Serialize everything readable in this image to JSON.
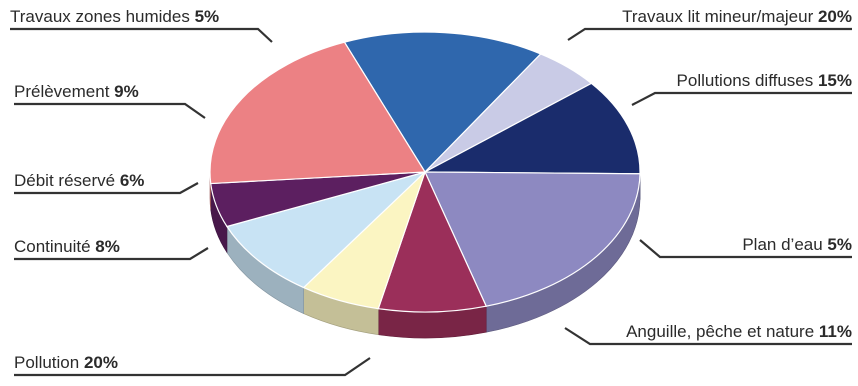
{
  "chart_data": {
    "type": "pie",
    "title": "",
    "legend": "none",
    "slices": [
      {
        "label": "Pollutions diffuses",
        "value": 15,
        "color": "#2f67ad"
      },
      {
        "label": "Plan d’eau",
        "value": 5,
        "color": "#c9cbe6"
      },
      {
        "label": "Anguille, pêche et nature",
        "value": 11,
        "color": "#1a2c6c"
      },
      {
        "label": "Pollution",
        "value": 20,
        "color": "#8d89c1"
      },
      {
        "label": "Continuité",
        "value": 8,
        "color": "#9b2f5a"
      },
      {
        "label": "Débit réservé",
        "value": 6,
        "color": "#fbf5c2"
      },
      {
        "label": "Prélèvement",
        "value": 9,
        "color": "#c8e3f4"
      },
      {
        "label": "Travaux zones humides",
        "value": 5,
        "color": "#5c1f60"
      },
      {
        "label": "Travaux lit mineur/majeur",
        "value": 20,
        "color": "#ec8184"
      }
    ]
  }
}
